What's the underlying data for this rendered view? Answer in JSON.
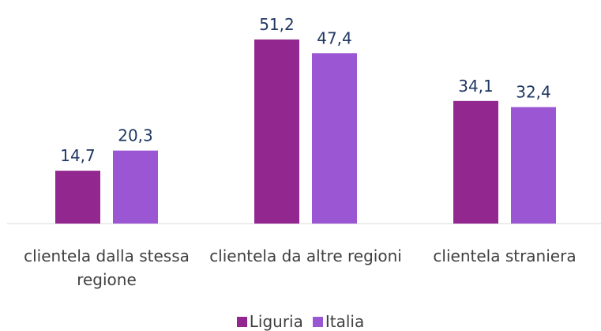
{
  "chart_data": {
    "type": "bar",
    "categories": [
      "clientela dalla stessa regione",
      "clientela da altre regioni",
      "clientela straniera"
    ],
    "series": [
      {
        "name": "Liguria",
        "color": "#92278f",
        "values": [
          14.7,
          51.2,
          34.1
        ],
        "value_labels": [
          "14,7",
          "51,2",
          "34,1"
        ]
      },
      {
        "name": "Italia",
        "color": "#9b57d3",
        "values": [
          20.3,
          47.4,
          32.4
        ],
        "value_labels": [
          "20,3",
          "47,4",
          "32,4"
        ]
      }
    ]
  }
}
